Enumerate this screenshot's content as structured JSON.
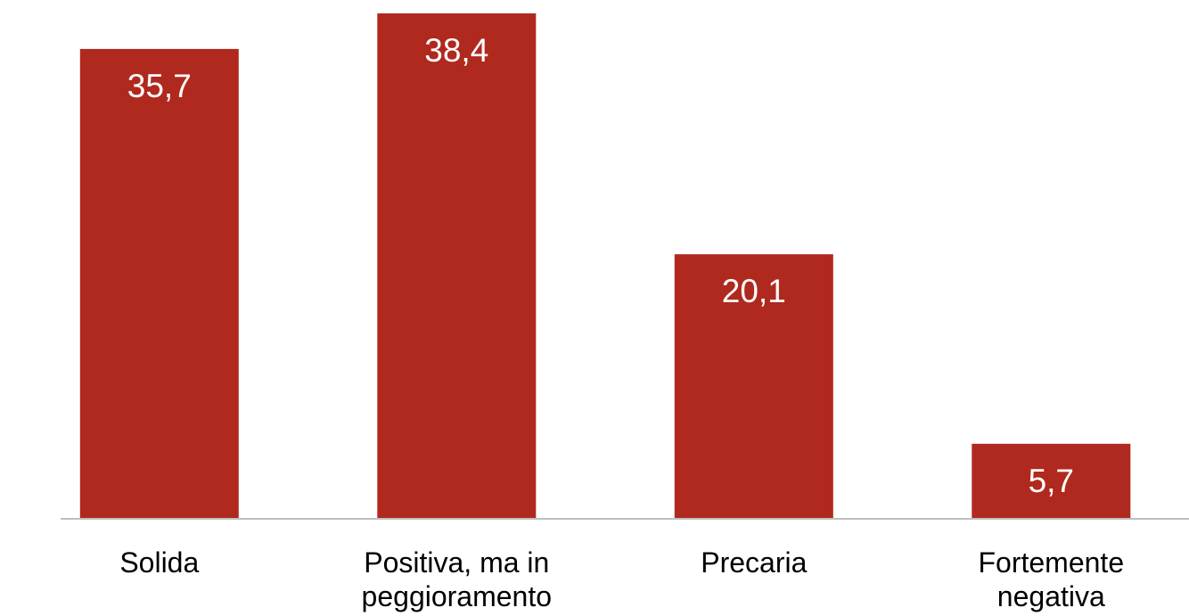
{
  "chart_data": {
    "type": "bar",
    "categories": [
      [
        "Solida"
      ],
      [
        "Positiva, ma in",
        "peggioramento"
      ],
      [
        "Precaria"
      ],
      [
        "Fortemente",
        "negativa"
      ]
    ],
    "values": [
      35.7,
      38.4,
      20.1,
      5.7
    ],
    "value_labels": [
      "35,7",
      "38,4",
      "20,1",
      "5,7"
    ],
    "ylim": [
      0,
      38.4
    ],
    "grid": false,
    "legend": "none",
    "bar_color": "#b0291e",
    "axis_color": "#bfbfbf"
  }
}
